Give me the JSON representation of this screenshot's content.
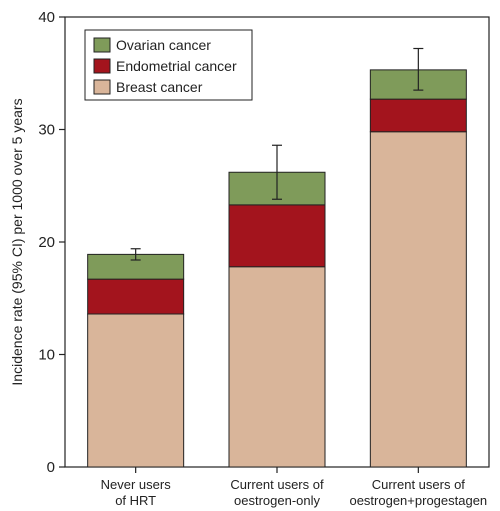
{
  "chart_data": {
    "type": "bar",
    "stacked": true,
    "title": "",
    "xlabel": "",
    "ylabel": "Incidence rate (95% CI) per 1000 over 5 years",
    "ylim": [
      0,
      40
    ],
    "yticks": [
      0,
      10,
      20,
      30,
      40
    ],
    "categories": [
      [
        "Never users",
        "of HRT"
      ],
      [
        "Current users of",
        "oestrogen-only"
      ],
      [
        "Current users of",
        "oestrogen+progestagen"
      ]
    ],
    "series": [
      {
        "name": "Breast cancer",
        "color": "#d9b59a",
        "values": [
          13.6,
          17.8,
          29.8
        ]
      },
      {
        "name": "Endometrial cancer",
        "color": "#a3141d",
        "values": [
          3.1,
          5.5,
          2.9
        ]
      },
      {
        "name": "Ovarian cancer",
        "color": "#7f9b5a",
        "values": [
          2.2,
          2.9,
          2.6
        ]
      }
    ],
    "totals": [
      18.9,
      26.2,
      35.3
    ],
    "error_bars": [
      {
        "low": 18.4,
        "high": 19.4
      },
      {
        "low": 23.8,
        "high": 28.6
      },
      {
        "low": 33.5,
        "high": 37.2
      }
    ],
    "legend_order": [
      "Ovarian cancer",
      "Endometrial cancer",
      "Breast cancer"
    ],
    "legend_position": "top-left",
    "grid": false
  }
}
